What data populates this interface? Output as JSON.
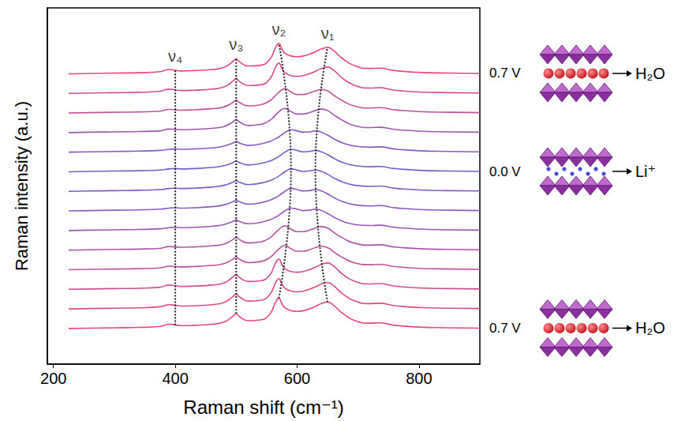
{
  "chart_data": {
    "type": "line",
    "x_label": "Raman shift (cm⁻¹)",
    "y_label": "Raman intensity (a.u.)",
    "xlim": [
      190,
      900
    ],
    "xticks": [
      200,
      400,
      600,
      800
    ],
    "ylim": [
      0,
      100
    ],
    "yticks": [],
    "tick_labels": "x",
    "grid": false,
    "x": [
      225,
      260,
      300,
      340,
      375,
      390,
      400,
      410,
      430,
      460,
      480,
      495,
      500,
      505,
      520,
      540,
      555,
      565,
      570,
      575,
      580,
      590,
      600,
      610,
      620,
      630,
      640,
      650,
      660,
      675,
      695,
      720,
      735,
      760,
      800,
      850,
      900
    ],
    "series": [
      {
        "name": "0.7 V",
        "guest": "H₂O",
        "color": "#e8467c",
        "values": [
          10,
          10.1,
          10.2,
          10.3,
          10.6,
          11.2,
          11,
          10.8,
          10.9,
          11.2,
          11.8,
          13.5,
          14.2,
          13.4,
          12.2,
          12.4,
          14,
          17.5,
          18.5,
          17,
          15.8,
          15,
          14.8,
          15,
          15.5,
          16.2,
          17,
          17.4,
          16.5,
          14.2,
          12.2,
          11.5,
          11.6,
          10.9,
          10.4,
          10.2,
          10.1
        ]
      },
      {
        "color": "#dc4a86",
        "values": [
          15.5,
          15.6,
          15.7,
          15.8,
          16.1,
          16.7,
          16.5,
          16.3,
          16.4,
          16.7,
          17.3,
          19,
          19.7,
          18.9,
          17.7,
          17.9,
          19.5,
          23,
          24,
          22.5,
          21.3,
          20.5,
          20.3,
          20.5,
          21,
          21.7,
          22.5,
          22.9,
          22,
          19.7,
          17.7,
          17,
          17.1,
          16.4,
          15.9,
          15.7,
          15.6
        ]
      },
      {
        "color": "#cf4e92",
        "values": [
          21,
          21.1,
          21.2,
          21.3,
          21.6,
          22.2,
          22,
          21.8,
          21.9,
          22.2,
          22.8,
          24.5,
          25.2,
          24.4,
          23.2,
          23.4,
          25,
          28.5,
          29.5,
          28,
          26.8,
          26,
          25.8,
          26,
          26.5,
          27.2,
          28,
          28.4,
          27.5,
          25.2,
          23.2,
          22.5,
          22.6,
          21.9,
          21.4,
          21.2,
          21.1
        ]
      },
      {
        "color": "#bf529e",
        "values": [
          26.5,
          26.6,
          26.7,
          26.8,
          27,
          27.5,
          27.4,
          27.3,
          27.4,
          27.7,
          28.2,
          29.5,
          30.1,
          29.5,
          28.5,
          28.8,
          29.9,
          31.5,
          32.3,
          33,
          33.3,
          32.4,
          31.7,
          31.7,
          32.1,
          32.7,
          33.1,
          32.7,
          31.5,
          29.9,
          28.4,
          27.9,
          28,
          27.4,
          26.9,
          26.7,
          26.6
        ]
      },
      {
        "color": "#ad55aa",
        "values": [
          32,
          32.1,
          32.2,
          32.3,
          32.5,
          33,
          32.9,
          32.8,
          32.9,
          33.2,
          33.7,
          35,
          35.6,
          35,
          34,
          34.3,
          35.4,
          37,
          37.8,
          38.5,
          38.8,
          37.9,
          37.2,
          37.2,
          37.6,
          38.2,
          38.6,
          38.2,
          37,
          35.4,
          33.9,
          33.4,
          33.5,
          32.9,
          32.4,
          32.2,
          32.1
        ]
      },
      {
        "color": "#9a58b6",
        "values": [
          37.5,
          37.6,
          37.7,
          37.8,
          38,
          38.3,
          38.4,
          38.3,
          38.4,
          38.7,
          39.2,
          40.1,
          40.5,
          40.1,
          39.4,
          39.8,
          40.5,
          41.3,
          41.8,
          42.4,
          43,
          43.8,
          43.5,
          43.1,
          43.2,
          43.5,
          43.1,
          42.3,
          41.3,
          40.1,
          39.2,
          38.9,
          39,
          38.4,
          37.9,
          37.7,
          37.6
        ]
      },
      {
        "color": "#8a5ac2",
        "values": [
          43,
          43.1,
          43.2,
          43.3,
          43.5,
          43.8,
          43.9,
          43.8,
          43.9,
          44.2,
          44.7,
          45.6,
          46,
          45.6,
          44.9,
          45.3,
          46,
          46.8,
          47.3,
          47.9,
          48.5,
          49.3,
          49,
          48.6,
          48.7,
          49,
          48.6,
          47.8,
          46.8,
          45.6,
          44.7,
          44.4,
          44.5,
          43.9,
          43.4,
          43.2,
          43.1
        ]
      },
      {
        "color": "#7d5cca",
        "values": [
          48.5,
          48.6,
          48.7,
          48.8,
          49,
          49.3,
          49.4,
          49.3,
          49.4,
          49.7,
          50.2,
          51.1,
          51.5,
          51.1,
          50.4,
          50.8,
          51.5,
          52.3,
          52.8,
          53.4,
          54,
          54.8,
          54.5,
          54.1,
          54.2,
          54.5,
          54.1,
          53.3,
          52.3,
          51.1,
          50.2,
          49.9,
          50,
          49.4,
          48.9,
          48.7,
          48.6
        ]
      },
      {
        "name": "0.0 V",
        "guest": "Li⁺",
        "color": "#7a5ccc",
        "values": [
          54,
          54.1,
          54.2,
          54.3,
          54.5,
          54.8,
          54.9,
          54.8,
          54.9,
          55.2,
          55.7,
          56.6,
          57,
          56.6,
          55.9,
          56.3,
          57,
          57.8,
          58.3,
          58.9,
          59.5,
          60.3,
          60,
          59.6,
          59.7,
          60,
          59.6,
          58.8,
          57.8,
          56.6,
          55.7,
          55.4,
          55.5,
          54.9,
          54.4,
          54.2,
          54.1
        ]
      },
      {
        "color": "#8a5ac2",
        "values": [
          59.5,
          59.6,
          59.7,
          59.8,
          60,
          60.3,
          60.4,
          60.3,
          60.4,
          60.7,
          61.2,
          62.1,
          62.5,
          62.1,
          61.4,
          61.8,
          62.5,
          63.3,
          63.8,
          64.4,
          65,
          65.8,
          65.5,
          65.1,
          65.2,
          65.5,
          65.1,
          64.3,
          63.3,
          62.1,
          61.2,
          60.9,
          61,
          60.4,
          59.9,
          59.7,
          59.6
        ]
      },
      {
        "color": "#a056b0",
        "values": [
          65,
          65.1,
          65.2,
          65.3,
          65.5,
          66,
          65.9,
          65.8,
          65.9,
          66.2,
          66.7,
          68,
          68.6,
          68,
          67,
          67.3,
          68.4,
          70,
          70.8,
          71.5,
          71.8,
          70.9,
          70.2,
          70.2,
          70.6,
          71.2,
          71.6,
          71.2,
          70,
          68.4,
          66.9,
          66.4,
          66.5,
          65.9,
          65.4,
          65.2,
          65.1
        ]
      },
      {
        "color": "#c0519c",
        "values": [
          70.5,
          70.6,
          70.7,
          70.8,
          71,
          71.5,
          71.4,
          71.3,
          71.4,
          71.7,
          72.2,
          73.5,
          74.1,
          73.5,
          72.5,
          72.8,
          73.9,
          75.5,
          76.3,
          77,
          77.3,
          76.4,
          75.7,
          75.7,
          76.1,
          76.7,
          77.1,
          76.7,
          75.5,
          73.9,
          72.4,
          71.9,
          72,
          71.4,
          70.9,
          70.7,
          70.6
        ]
      },
      {
        "color": "#d44c8c",
        "values": [
          76,
          76.1,
          76.2,
          76.3,
          76.6,
          77.2,
          77,
          76.8,
          76.9,
          77.2,
          77.8,
          79.5,
          80.2,
          79.4,
          78.2,
          78.4,
          80,
          83.5,
          84.5,
          83,
          81.8,
          81,
          80.8,
          81,
          81.5,
          82.2,
          83,
          83.4,
          82.5,
          80.2,
          78.2,
          77.5,
          77.6,
          76.9,
          76.4,
          76.2,
          76.1
        ]
      },
      {
        "name": "0.7 V",
        "guest": "H₂O",
        "color": "#e8467c",
        "values": [
          81.5,
          81.6,
          81.7,
          81.8,
          82.1,
          82.7,
          82.5,
          82.3,
          82.4,
          82.7,
          83.3,
          85,
          85.7,
          84.9,
          83.7,
          83.9,
          85.5,
          89,
          90,
          88.5,
          87.3,
          86.5,
          86.3,
          86.5,
          87,
          87.7,
          88.5,
          88.9,
          88,
          85.7,
          83.7,
          83,
          83.1,
          82.4,
          81.9,
          81.7,
          81.6
        ]
      }
    ],
    "peak_lines": [
      {
        "label": "ν₄",
        "line_style": "dotted",
        "points": [
          [
            400,
            11
          ],
          [
            400,
            82.5
          ]
        ]
      },
      {
        "label": "ν₃",
        "line_style": "dotted",
        "points": [
          [
            500,
            14.2
          ],
          [
            500,
            85.7
          ]
        ]
      },
      {
        "label": "ν₂",
        "line_style": "dotted",
        "points": [
          [
            570,
            18.5
          ],
          [
            590,
            54.8
          ],
          [
            570,
            90
          ]
        ]
      },
      {
        "label": "ν₁",
        "line_style": "dotted",
        "points": [
          [
            650,
            17.4
          ],
          [
            630,
            54.5
          ],
          [
            650,
            88.9
          ]
        ]
      }
    ]
  }
}
